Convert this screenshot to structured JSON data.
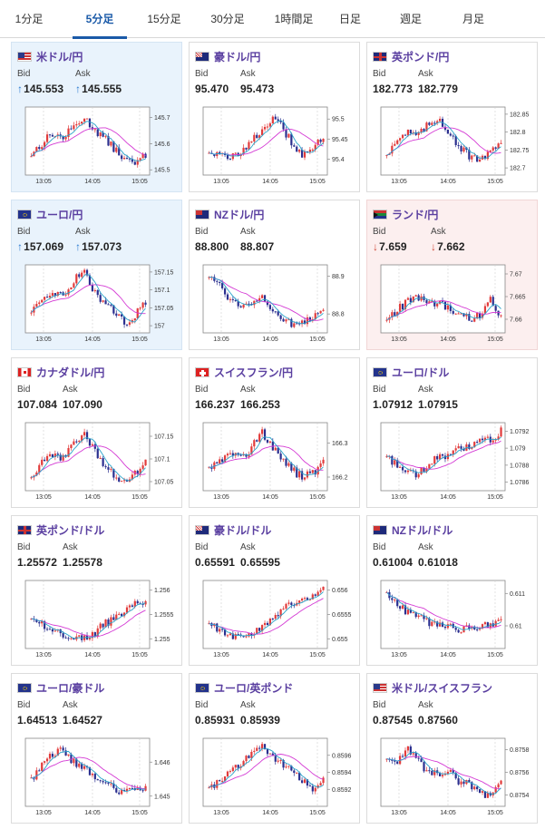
{
  "tabs": [
    {
      "label": "1分足",
      "active": false
    },
    {
      "label": "5分足",
      "active": true
    },
    {
      "label": "15分足",
      "active": false
    },
    {
      "label": "30分足",
      "active": false
    },
    {
      "label": "1時間足",
      "active": false
    },
    {
      "label": "日足",
      "active": false
    },
    {
      "label": "週足",
      "active": false
    },
    {
      "label": "月足",
      "active": false
    }
  ],
  "labels": {
    "bid": "Bid",
    "ask": "Ask"
  },
  "colors": {
    "accent": "#1a5aa8",
    "title": "#5a3fa0",
    "bull": "#e23b3b",
    "bear": "#2b2f8f",
    "ma_long": "#d43ad4",
    "ma_short": "#2aa3c9",
    "up_arrow": "#2a7ad0",
    "down_arrow": "#d04a3a",
    "up_bg": "#e9f3fc",
    "down_bg": "#fcefef"
  },
  "cards": [
    {
      "pair": "米ドル/円",
      "flag": "us-jp-flag-icon",
      "state": "up",
      "bid": "145.553",
      "ask": "145.555",
      "arrow": "↑",
      "chart_data": {
        "type": "candlestick",
        "x_ticks": [
          "13:05",
          "14:05",
          "15:05"
        ],
        "y_ticks": [
          "145.7",
          "145.6",
          "145.5"
        ],
        "ylim": [
          145.48,
          145.74
        ],
        "anchors": [
          145.56,
          145.6,
          145.64,
          145.62,
          145.66,
          145.7,
          145.66,
          145.62,
          145.58,
          145.54,
          145.52,
          145.56
        ]
      }
    },
    {
      "pair": "豪ドル/円",
      "flag": "au-jp-flag-icon",
      "state": "",
      "bid": "95.470",
      "ask": "95.473",
      "arrow": "",
      "chart_data": {
        "type": "candlestick",
        "x_ticks": [
          "13:05",
          "14:05",
          "15:05"
        ],
        "y_ticks": [
          "95.5",
          "95.45",
          "95.4"
        ],
        "ylim": [
          95.36,
          95.53
        ],
        "anchors": [
          95.42,
          95.41,
          95.4,
          95.42,
          95.44,
          95.47,
          95.5,
          95.48,
          95.44,
          95.41,
          95.42,
          95.46
        ]
      }
    },
    {
      "pair": "英ポンド/円",
      "flag": "gb-jp-flag-icon",
      "state": "",
      "bid": "182.773",
      "ask": "182.779",
      "arrow": "",
      "chart_data": {
        "type": "candlestick",
        "x_ticks": [
          "13:05",
          "14:05",
          "15:05"
        ],
        "y_ticks": [
          "182.85",
          "182.8",
          "182.75",
          "182.7"
        ],
        "ylim": [
          182.68,
          182.87
        ],
        "anchors": [
          182.74,
          182.78,
          182.8,
          182.79,
          182.82,
          182.84,
          182.8,
          182.76,
          182.73,
          182.72,
          182.74,
          182.78
        ]
      }
    },
    {
      "pair": "ユーロ/円",
      "flag": "eu-jp-flag-icon",
      "state": "up",
      "bid": "157.069",
      "ask": "157.073",
      "arrow": "↑",
      "chart_data": {
        "type": "candlestick",
        "x_ticks": [
          "13:05",
          "14:05",
          "15:05"
        ],
        "y_ticks": [
          "157.15",
          "157.1",
          "157.05",
          "157"
        ],
        "ylim": [
          156.98,
          157.17
        ],
        "anchors": [
          157.04,
          157.06,
          157.1,
          157.08,
          157.12,
          157.16,
          157.1,
          157.06,
          157.04,
          157.01,
          157.03,
          157.07
        ]
      }
    },
    {
      "pair": "NZドル/円",
      "flag": "nz-jp-flag-icon",
      "state": "",
      "bid": "88.800",
      "ask": "88.807",
      "arrow": "",
      "chart_data": {
        "type": "candlestick",
        "x_ticks": [
          "13:05",
          "14:05",
          "15:05"
        ],
        "y_ticks": [
          "88.9",
          "88.8"
        ],
        "ylim": [
          88.75,
          88.93
        ],
        "anchors": [
          88.9,
          88.88,
          88.84,
          88.82,
          88.83,
          88.85,
          88.82,
          88.79,
          88.77,
          88.78,
          88.79,
          88.8
        ]
      }
    },
    {
      "pair": "ランド/円",
      "flag": "za-jp-flag-icon",
      "state": "down",
      "bid": "7.659",
      "ask": "7.662",
      "arrow": "↓",
      "chart_data": {
        "type": "candlestick",
        "x_ticks": [
          "13:05",
          "14:05",
          "15:05"
        ],
        "y_ticks": [
          "7.67",
          "7.665",
          "7.66"
        ],
        "ylim": [
          7.657,
          7.672
        ],
        "anchors": [
          7.66,
          7.662,
          7.664,
          7.665,
          7.663,
          7.664,
          7.662,
          7.661,
          7.66,
          7.661,
          7.665,
          7.66
        ]
      }
    },
    {
      "pair": "カナダドル/円",
      "flag": "ca-jp-flag-icon",
      "state": "",
      "bid": "107.084",
      "ask": "107.090",
      "arrow": "",
      "chart_data": {
        "type": "candlestick",
        "x_ticks": [
          "13:05",
          "14:05",
          "15:05"
        ],
        "y_ticks": [
          "107.15",
          "107.1",
          "107.05"
        ],
        "ylim": [
          107.03,
          107.18
        ],
        "anchors": [
          107.06,
          107.09,
          107.11,
          107.1,
          107.13,
          107.16,
          107.12,
          107.09,
          107.06,
          107.05,
          107.07,
          107.09
        ]
      }
    },
    {
      "pair": "スイスフラン/円",
      "flag": "ch-jp-flag-icon",
      "state": "",
      "bid": "166.237",
      "ask": "166.253",
      "arrow": "",
      "chart_data": {
        "type": "candlestick",
        "x_ticks": [
          "13:05",
          "14:05",
          "15:05"
        ],
        "y_ticks": [
          "166.3",
          "166.2"
        ],
        "ylim": [
          166.16,
          166.36
        ],
        "anchors": [
          166.23,
          166.25,
          166.27,
          166.26,
          166.28,
          166.34,
          166.29,
          166.25,
          166.22,
          166.2,
          166.21,
          166.24
        ]
      }
    },
    {
      "pair": "ユーロ/ドル",
      "flag": "eu-us-flag-icon",
      "state": "",
      "bid": "1.07912",
      "ask": "1.07915",
      "arrow": "",
      "chart_data": {
        "type": "candlestick",
        "x_ticks": [
          "13:05",
          "14:05",
          "15:05"
        ],
        "y_ticks": [
          "1.0792",
          "1.079",
          "1.0788",
          "1.0786"
        ],
        "ylim": [
          1.0785,
          1.0793
        ],
        "anchors": [
          1.0789,
          1.0788,
          1.0787,
          1.0787,
          1.0788,
          1.0789,
          1.0789,
          1.079,
          1.079,
          1.0791,
          1.0791,
          1.0792
        ]
      }
    },
    {
      "pair": "英ポンド/ドル",
      "flag": "gb-us-flag-icon",
      "state": "",
      "bid": "1.25572",
      "ask": "1.25578",
      "arrow": "",
      "chart_data": {
        "type": "candlestick",
        "x_ticks": [
          "13:05",
          "14:05",
          "15:05"
        ],
        "y_ticks": [
          "1.256",
          "1.2555",
          "1.255"
        ],
        "ylim": [
          1.2548,
          1.2562
        ],
        "anchors": [
          1.2554,
          1.2553,
          1.2552,
          1.2551,
          1.255,
          1.255,
          1.2551,
          1.2553,
          1.2554,
          1.2556,
          1.2558,
          1.2557
        ]
      }
    },
    {
      "pair": "豪ドル/ドル",
      "flag": "au-us-flag-icon",
      "state": "",
      "bid": "0.65591",
      "ask": "0.65595",
      "arrow": "",
      "chart_data": {
        "type": "candlestick",
        "x_ticks": [
          "13:05",
          "14:05",
          "15:05"
        ],
        "y_ticks": [
          "0.656",
          "0.6555",
          "0.655"
        ],
        "ylim": [
          0.6548,
          0.6562
        ],
        "anchors": [
          0.6553,
          0.6552,
          0.6551,
          0.655,
          0.6551,
          0.6552,
          0.6554,
          0.6556,
          0.6557,
          0.6558,
          0.6559,
          0.656
        ]
      }
    },
    {
      "pair": "NZドル/ドル",
      "flag": "nz-us-flag-icon",
      "state": "",
      "bid": "0.61004",
      "ask": "0.61018",
      "arrow": "",
      "chart_data": {
        "type": "candlestick",
        "x_ticks": [
          "13:05",
          "14:05",
          "15:05"
        ],
        "y_ticks": [
          "0.611",
          "0.61"
        ],
        "ylim": [
          0.6093,
          0.6114
        ],
        "anchors": [
          0.611,
          0.6107,
          0.6104,
          0.6103,
          0.6101,
          0.61,
          0.61,
          0.6099,
          0.6099,
          0.61,
          0.61,
          0.6101
        ]
      }
    },
    {
      "pair": "ユーロ/豪ドル",
      "flag": "eu-au-flag-icon",
      "state": "",
      "bid": "1.64513",
      "ask": "1.64527",
      "arrow": "",
      "chart_data": {
        "type": "candlestick",
        "x_ticks": [
          "13:05",
          "14:05",
          "15:05"
        ],
        "y_ticks": [
          "1.646",
          "1.645"
        ],
        "ylim": [
          1.6447,
          1.6467
        ],
        "anchors": [
          1.6455,
          1.6459,
          1.6462,
          1.6464,
          1.646,
          1.6458,
          1.6456,
          1.6454,
          1.6452,
          1.6451,
          1.6453,
          1.6452
        ]
      }
    },
    {
      "pair": "ユーロ/英ポンド",
      "flag": "eu-gb-flag-icon",
      "state": "",
      "bid": "0.85931",
      "ask": "0.85939",
      "arrow": "",
      "chart_data": {
        "type": "candlestick",
        "x_ticks": [
          "13:05",
          "14:05",
          "15:05"
        ],
        "y_ticks": [
          "0.8596",
          "0.8594",
          "0.8592"
        ],
        "ylim": [
          0.859,
          0.8598
        ],
        "anchors": [
          0.8592,
          0.8593,
          0.8594,
          0.8595,
          0.8596,
          0.8597,
          0.8596,
          0.8595,
          0.8594,
          0.8593,
          0.8592,
          0.8593
        ]
      }
    },
    {
      "pair": "米ドル/スイスフラン",
      "flag": "us-ch-flag-icon",
      "state": "",
      "bid": "0.87545",
      "ask": "0.87560",
      "arrow": "",
      "chart_data": {
        "type": "candlestick",
        "x_ticks": [
          "13:05",
          "14:05",
          "15:05"
        ],
        "y_ticks": [
          "0.8758",
          "0.8756",
          "0.8754"
        ],
        "ylim": [
          0.8753,
          0.8759
        ],
        "anchors": [
          0.8757,
          0.8757,
          0.8758,
          0.8757,
          0.8756,
          0.8756,
          0.8756,
          0.8755,
          0.8755,
          0.8754,
          0.8754,
          0.8755
        ]
      }
    }
  ]
}
